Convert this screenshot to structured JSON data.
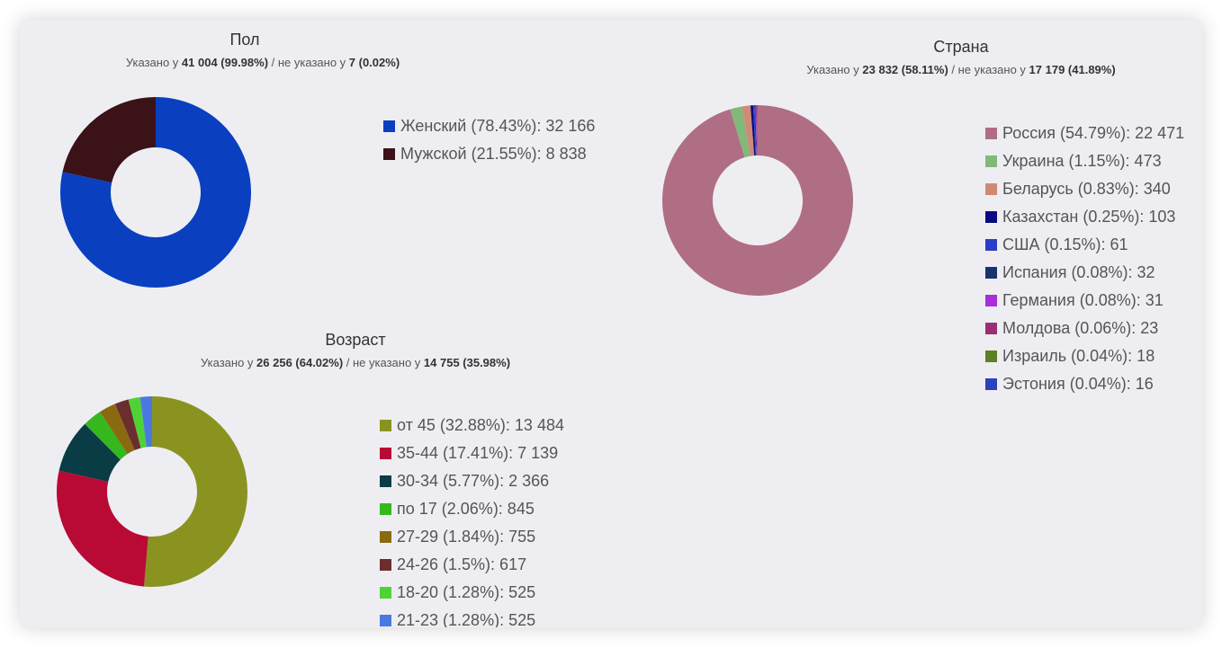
{
  "chart_data": [
    {
      "id": "gender",
      "type": "pie",
      "title": "Пол",
      "subtitle": {
        "p1": "Указано у ",
        "known": "41 004 (99.98%)",
        "p2": " / не указано у ",
        "unknown": "7 (0.02%)"
      },
      "slices": [
        {
          "label": "Женский (78.43%): 32 166",
          "value": 32166,
          "percent": 78.43,
          "color": "#0a3fc0"
        },
        {
          "label": "Мужской (21.55%): 8 838",
          "value": 8838,
          "percent": 21.55,
          "color": "#3a1218"
        }
      ]
    },
    {
      "id": "country",
      "type": "pie",
      "title": "Страна",
      "subtitle": {
        "p1": "Указано у ",
        "known": "23 832 (58.11%)",
        "p2": " / не указано у ",
        "unknown": "17 179 (41.89%)"
      },
      "slices": [
        {
          "label": "Россия (54.79%): 22 471",
          "value": 22471,
          "percent": 54.79,
          "color": "#b06e84"
        },
        {
          "label": "Украина (1.15%): 473",
          "value": 473,
          "percent": 1.15,
          "color": "#82b87a"
        },
        {
          "label": "Беларусь (0.83%): 340",
          "value": 340,
          "percent": 0.83,
          "color": "#cf8a76"
        },
        {
          "label": "Казахстан (0.25%): 103",
          "value": 103,
          "percent": 0.25,
          "color": "#0a0a80"
        },
        {
          "label": "США (0.15%): 61",
          "value": 61,
          "percent": 0.15,
          "color": "#2a3fc2"
        },
        {
          "label": "Испания (0.08%): 32",
          "value": 32,
          "percent": 0.08,
          "color": "#17346e"
        },
        {
          "label": "Германия (0.08%): 31",
          "value": 31,
          "percent": 0.08,
          "color": "#a730d6"
        },
        {
          "label": "Молдова (0.06%): 23",
          "value": 23,
          "percent": 0.06,
          "color": "#9a2e72"
        },
        {
          "label": "Израиль (0.04%): 18",
          "value": 18,
          "percent": 0.04,
          "color": "#5a8222"
        },
        {
          "label": "Эстония (0.04%): 16",
          "value": 16,
          "percent": 0.04,
          "color": "#2f3fbe"
        }
      ]
    },
    {
      "id": "age",
      "type": "pie",
      "title": "Возраст",
      "subtitle": {
        "p1": "Указано у ",
        "known": "26 256 (64.02%)",
        "p2": " / не указано у ",
        "unknown": "14 755 (35.98%)"
      },
      "slices": [
        {
          "label": "от 45 (32.88%): 13 484",
          "value": 13484,
          "percent": 32.88,
          "color": "#8a9320"
        },
        {
          "label": "35-44 (17.41%): 7 139",
          "value": 7139,
          "percent": 17.41,
          "color": "#b80a34"
        },
        {
          "label": "30-34 (5.77%): 2 366",
          "value": 2366,
          "percent": 5.77,
          "color": "#093c44"
        },
        {
          "label": "по 17 (2.06%): 845",
          "value": 845,
          "percent": 2.06,
          "color": "#34b81e"
        },
        {
          "label": "27-29 (1.84%): 755",
          "value": 755,
          "percent": 1.84,
          "color": "#8a6a10"
        },
        {
          "label": "24-26 (1.5%): 617",
          "value": 617,
          "percent": 1.5,
          "color": "#6b2e2e"
        },
        {
          "label": "18-20 (1.28%): 525",
          "value": 525,
          "percent": 1.28,
          "color": "#4fd236"
        },
        {
          "label": "21-23 (1.28%): 525",
          "value": 525,
          "percent": 1.28,
          "color": "#4a7ae0"
        }
      ]
    }
  ]
}
